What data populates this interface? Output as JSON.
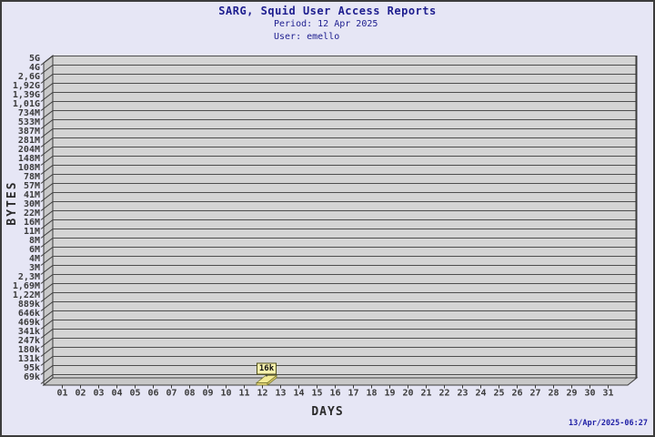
{
  "header": {
    "title": "SARG, Squid User Access Reports",
    "period": "Period: 12 Apr 2025",
    "user": "User: emello"
  },
  "footer": {
    "generated": "13/Apr/2025-06:27"
  },
  "chart_data": {
    "type": "bar",
    "title": "SARG, Squid User Access Reports",
    "subtitle": [
      "Period: 12 Apr 2025",
      "User: emello"
    ],
    "xlabel": "DAYS",
    "ylabel": "BYTES",
    "x_ticks": [
      "01",
      "02",
      "03",
      "04",
      "05",
      "06",
      "07",
      "08",
      "09",
      "10",
      "11",
      "12",
      "13",
      "14",
      "15",
      "16",
      "17",
      "18",
      "19",
      "20",
      "21",
      "22",
      "23",
      "24",
      "25",
      "26",
      "27",
      "28",
      "29",
      "30",
      "31"
    ],
    "y_ticks": [
      "5G",
      "4G",
      "2,6G",
      "1,92G",
      "1,39G",
      "1,01G",
      "734M",
      "533M",
      "387M",
      "281M",
      "204M",
      "148M",
      "108M",
      "78M",
      "57M",
      "41M",
      "30M",
      "22M",
      "16M",
      "11M",
      "8M",
      "6M",
      "4M",
      "3M",
      "2,3M",
      "1,69M",
      "1,22M",
      "889k",
      "646k",
      "469k",
      "341k",
      "247k",
      "180k",
      "131k",
      "95k",
      "69k"
    ],
    "ylim": [
      "69k",
      "5G"
    ],
    "grid": true,
    "legend": false,
    "categories": [
      "01",
      "02",
      "03",
      "04",
      "05",
      "06",
      "07",
      "08",
      "09",
      "10",
      "11",
      "12",
      "13",
      "14",
      "15",
      "16",
      "17",
      "18",
      "19",
      "20",
      "21",
      "22",
      "23",
      "24",
      "25",
      "26",
      "27",
      "28",
      "29",
      "30",
      "31"
    ],
    "values": [
      null,
      null,
      null,
      null,
      null,
      null,
      null,
      null,
      null,
      null,
      null,
      16000,
      null,
      null,
      null,
      null,
      null,
      null,
      null,
      null,
      null,
      null,
      null,
      null,
      null,
      null,
      null,
      null,
      null,
      null,
      null
    ],
    "bar_labels": [
      null,
      null,
      null,
      null,
      null,
      null,
      null,
      null,
      null,
      null,
      null,
      "16k",
      null,
      null,
      null,
      null,
      null,
      null,
      null,
      null,
      null,
      null,
      null,
      null,
      null,
      null,
      null,
      null,
      null,
      null,
      null
    ],
    "annotations": [
      {
        "category": "12",
        "label": "16k",
        "value": 16000
      }
    ]
  },
  "colors": {
    "background": "#e6e6f5",
    "frame": "#3c3c3c",
    "plot_bg": "#d4d4d4",
    "wall_bg": "#c8c8c8",
    "gridline": "#4e4e4e",
    "axis_edge": "#3c3c3c",
    "tick_text": "#3b3b3b",
    "title_text": "#1e1e8f",
    "timestamp_text": "#2121a6",
    "bar_top": "#f3ea96",
    "bar_front": "#ead979",
    "bar_side": "#d9c968",
    "bar_edge": "#70702c",
    "bar_label_bg": "#f7f1ad",
    "bar_label_border": "#50501a",
    "bar_label_text": "#101010"
  }
}
